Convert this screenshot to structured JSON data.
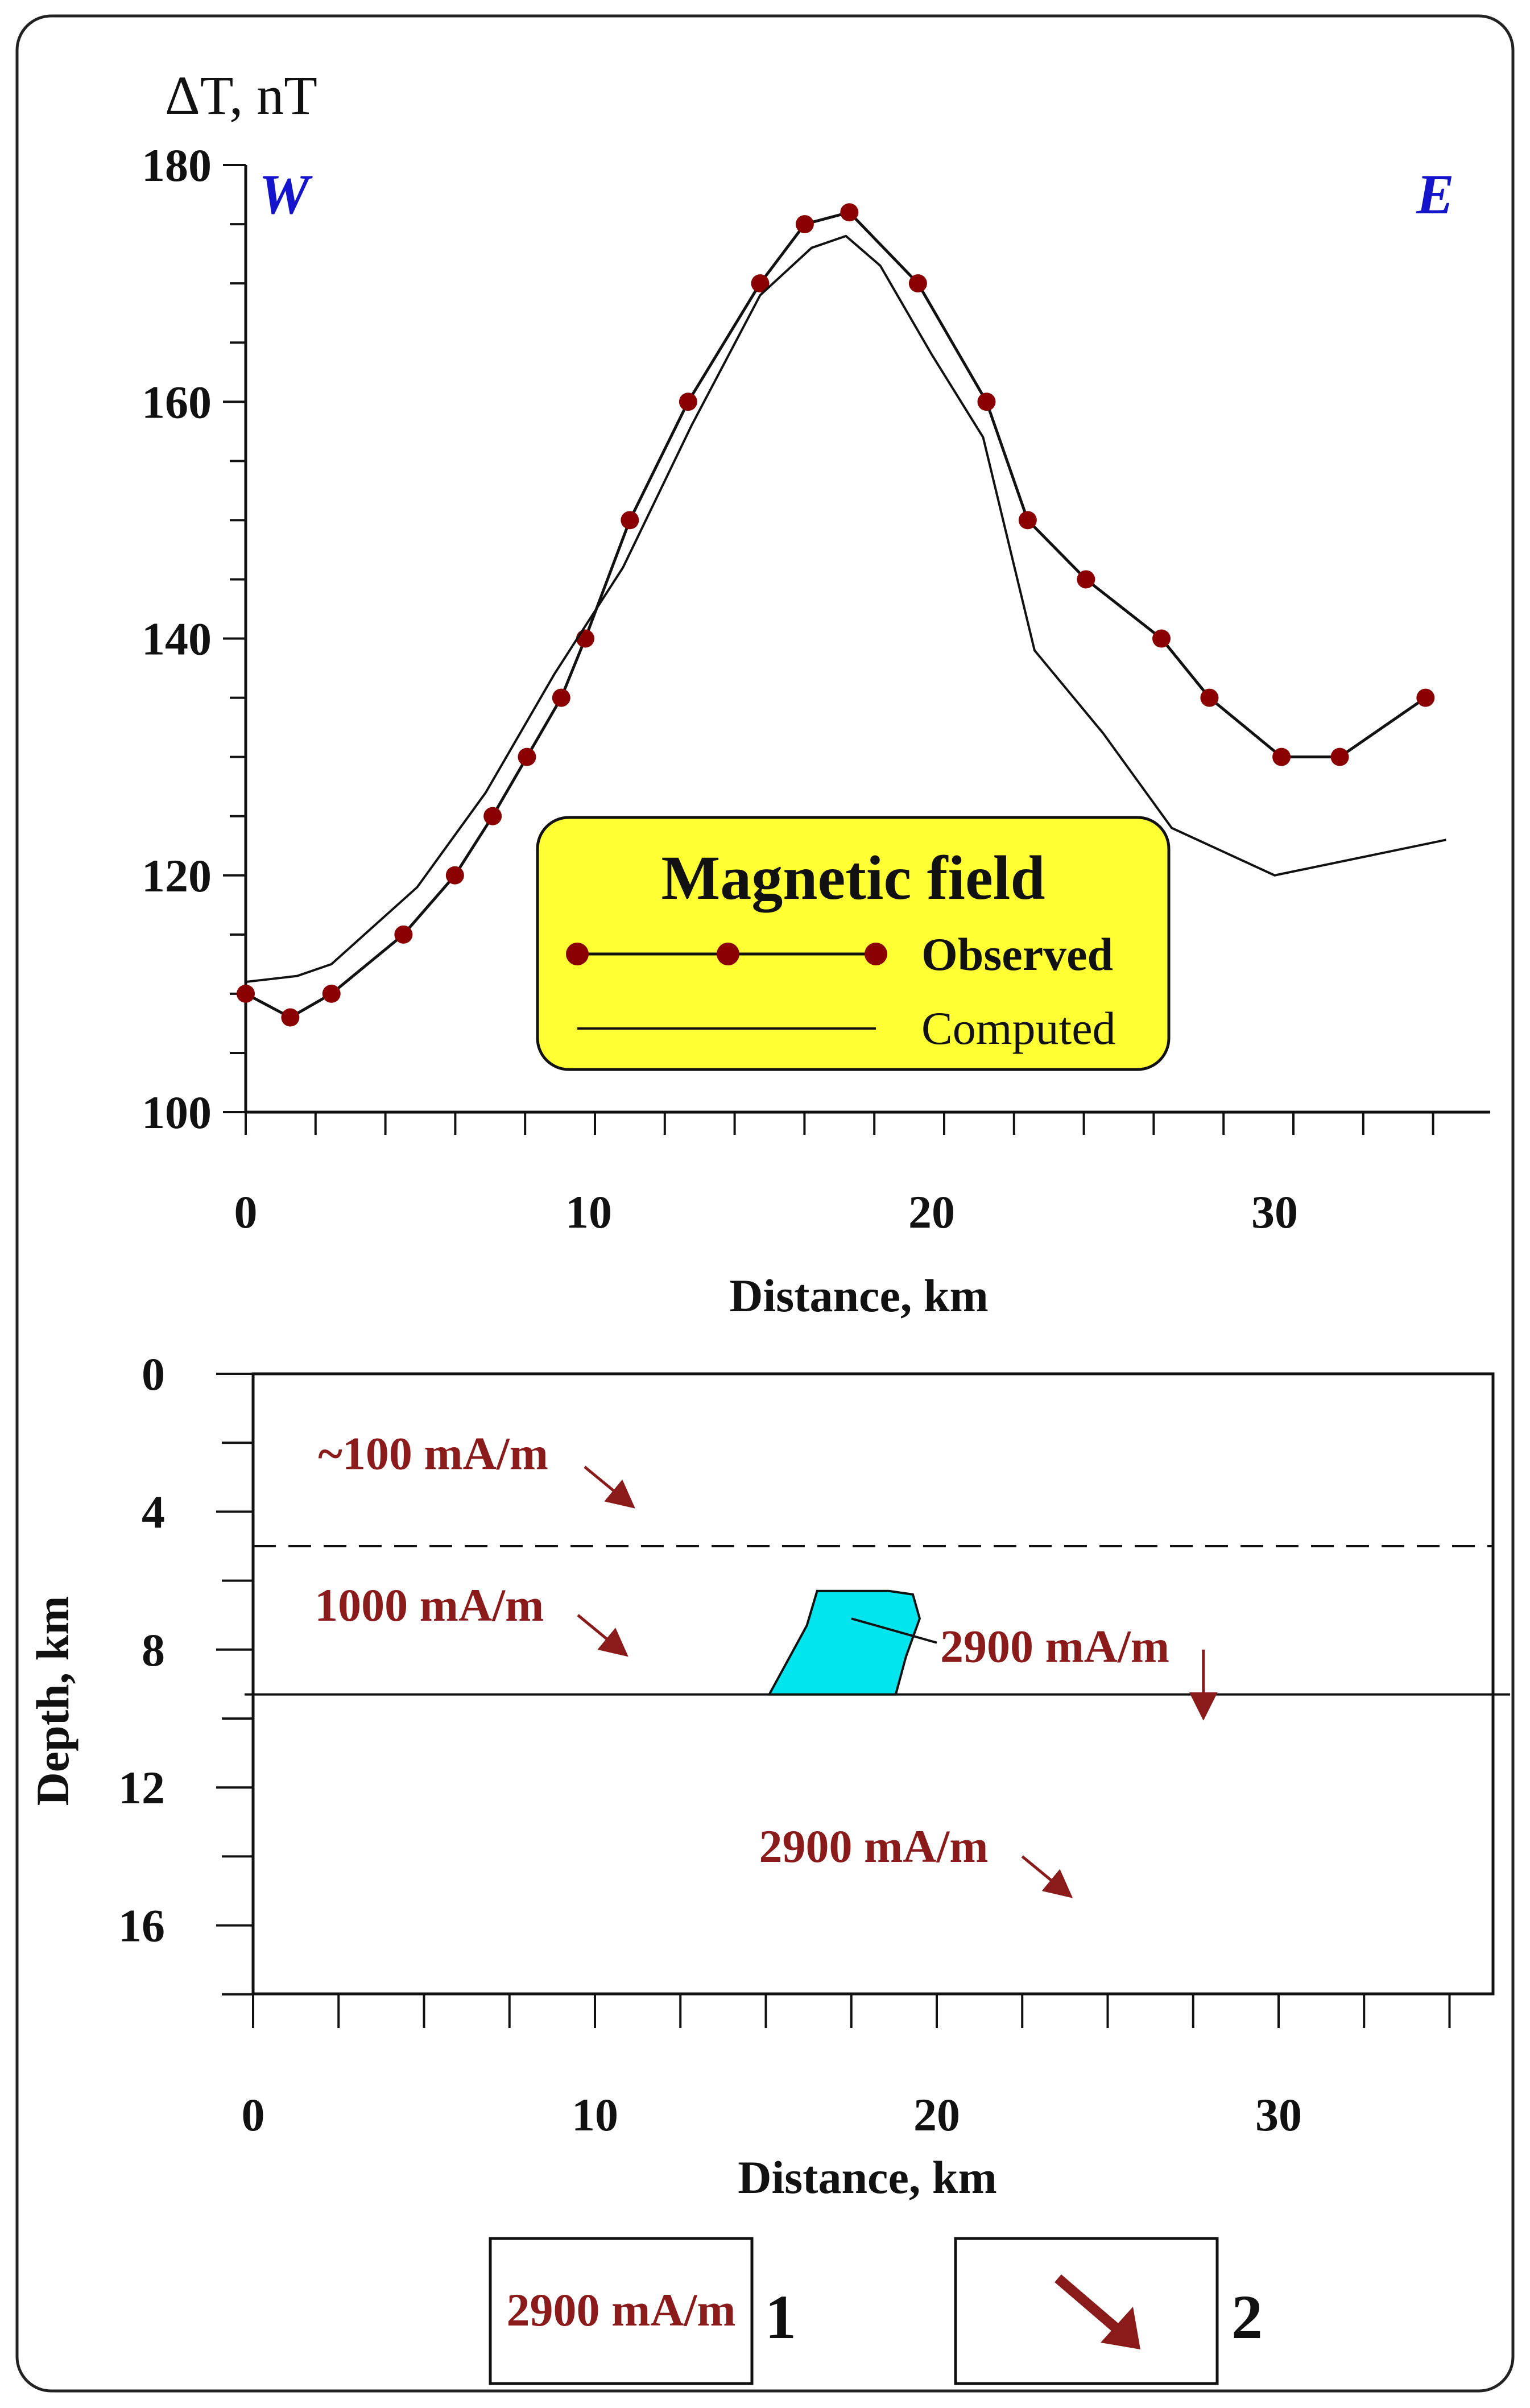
{
  "chart_data": [
    {
      "type": "line",
      "ylabel_symbol": "ΔT",
      "ylabel_bold": "T",
      "ylabel_unit": ", nT",
      "xlabel": "Distance, km",
      "xlim": [
        0,
        35
      ],
      "ylim": [
        100,
        180
      ],
      "xticks": [
        0,
        10,
        20,
        30
      ],
      "yticks": [
        100,
        120,
        140,
        160,
        180
      ],
      "direction_left": "W",
      "direction_right": "E",
      "legend": {
        "title": "Magnetic field",
        "observed_label": "Observed",
        "computed_label": "Computed",
        "placement": "bottom-center"
      },
      "series": [
        {
          "name": "Observed",
          "style": "line-with-markers",
          "color": "#8b0000",
          "x": [
            0,
            1.3,
            2.5,
            4.6,
            6.1,
            7.2,
            8.2,
            9.2,
            9.9,
            11.2,
            12.9,
            15.0,
            16.3,
            17.6,
            19.6,
            21.6,
            22.8,
            24.5,
            26.7,
            28.1,
            30.2,
            31.9,
            34.4
          ],
          "y": [
            110,
            108,
            110,
            115,
            120,
            125,
            130,
            135,
            140,
            150,
            160,
            170,
            175,
            176,
            170,
            160,
            150,
            145,
            140,
            135,
            130,
            130,
            135
          ]
        },
        {
          "name": "Computed",
          "style": "line",
          "color": "#000000",
          "x": [
            0,
            1.5,
            2.5,
            5.0,
            7.0,
            9.0,
            11.0,
            13.0,
            15.0,
            16.5,
            17.5,
            18.5,
            20.0,
            21.5,
            23.0,
            25.0,
            27.0,
            30.0,
            35.0
          ],
          "y": [
            111,
            111.5,
            112.5,
            119,
            127,
            137,
            146,
            158,
            169,
            173,
            174,
            171.5,
            164,
            157,
            139,
            132,
            124,
            120,
            123
          ]
        }
      ]
    },
    {
      "type": "section",
      "ylabel": "Depth, km",
      "xlabel": "Distance, km",
      "xlim": [
        0,
        36
      ],
      "ylim": [
        0,
        18
      ],
      "xticks": [
        0,
        10,
        20,
        30
      ],
      "yticks": [
        0,
        4,
        8,
        12,
        16
      ],
      "boundaries": [
        {
          "depth": 5,
          "style": "dashed"
        },
        {
          "depth": 9.3,
          "style": "solid"
        }
      ],
      "body": {
        "color": "#00e5ee",
        "outline": [
          [
            15.1,
            9.3
          ],
          [
            16.2,
            7.3
          ],
          [
            16.5,
            6.3
          ],
          [
            18.6,
            6.3
          ],
          [
            19.3,
            6.4
          ],
          [
            19.5,
            7.1
          ],
          [
            19.1,
            8.2
          ],
          [
            18.8,
            9.3
          ]
        ]
      },
      "layers": [
        {
          "label": "~100 mA/m",
          "label_x": 1.9,
          "label_depth": 2.3,
          "arrow": "down-right",
          "arrow_x": 9.7,
          "arrow_depth": 2.7
        },
        {
          "label": "1000 mA/m",
          "label_x": 1.8,
          "label_depth": 6.7,
          "arrow": "down-right",
          "arrow_x": 9.5,
          "arrow_depth": 7.0
        },
        {
          "label": "2900 mA/m",
          "label_x": 20.1,
          "label_depth": 7.9,
          "arrow": "down",
          "arrow_x": 27.8,
          "arrow_depth": 8.0
        },
        {
          "label": "2900 mA/m",
          "label_x": 14.8,
          "label_depth": 13.7,
          "arrow": "down-right",
          "arrow_x": 22.5,
          "arrow_depth": 14.0
        }
      ]
    }
  ],
  "key": {
    "item1_text": "2900 mA/m",
    "item1_number": "1",
    "item2_number": "2"
  },
  "colors": {
    "observed": "#8b0000",
    "computed": "#000000",
    "annotation": "#8b1a1a",
    "legend_fill": "#ffff33",
    "body_fill": "#00e5ee",
    "direction": "#1414cc"
  }
}
